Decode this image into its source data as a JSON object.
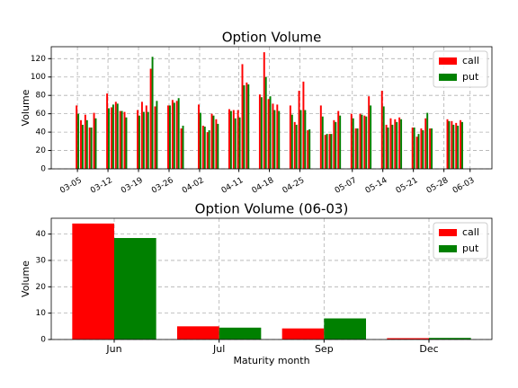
{
  "chart_data": [
    {
      "type": "bar",
      "title": "Option Volume",
      "ylabel": "Volume",
      "x": [
        "03-05",
        "03-06",
        "03-07",
        "03-08",
        "03-09",
        "03-12",
        "03-13",
        "03-14",
        "03-15",
        "03-16",
        "03-19",
        "03-20",
        "03-21",
        "03-22",
        "03-23",
        "03-26",
        "03-27",
        "03-28",
        "03-29",
        "04-02",
        "04-03",
        "04-04",
        "04-05",
        "04-06",
        "04-09",
        "04-10",
        "04-11",
        "04-12",
        "04-13",
        "04-16",
        "04-17",
        "04-18",
        "04-19",
        "04-20",
        "04-23",
        "04-24",
        "04-25",
        "04-26",
        "04-27",
        "04-30",
        "05-01",
        "05-02",
        "05-03",
        "05-04",
        "05-07",
        "05-08",
        "05-09",
        "05-10",
        "05-11",
        "05-14",
        "05-15",
        "05-16",
        "05-17",
        "05-18",
        "05-21",
        "05-22",
        "05-23",
        "05-24",
        "05-25",
        "05-29",
        "05-30",
        "05-31",
        "06-01"
      ],
      "series": [
        {
          "name": "call",
          "color": "#ff0000",
          "values": [
            69,
            53,
            59,
            45,
            61,
            82,
            67,
            73,
            63,
            62,
            64,
            73,
            69,
            109,
            68,
            69,
            75,
            74,
            44,
            70,
            47,
            40,
            60,
            54,
            65,
            64,
            64,
            114,
            94,
            81,
            127,
            76,
            71,
            70,
            69,
            51,
            85,
            95,
            42,
            69,
            37,
            38,
            53,
            63,
            60,
            44,
            60,
            58,
            79,
            85,
            48,
            55,
            54,
            56,
            45,
            35,
            44,
            55,
            44,
            54,
            52,
            50,
            53
          ]
        },
        {
          "name": "put",
          "color": "#008000",
          "values": [
            60,
            48,
            53,
            45,
            55,
            66,
            70,
            71,
            63,
            56,
            58,
            62,
            62,
            122,
            74,
            69,
            72,
            77,
            47,
            61,
            46,
            42,
            58,
            49,
            63,
            55,
            56,
            91,
            92,
            78,
            100,
            79,
            64,
            63,
            59,
            48,
            64,
            64,
            43,
            57,
            38,
            38,
            51,
            58,
            55,
            44,
            59,
            57,
            69,
            68,
            45,
            48,
            51,
            54,
            45,
            38,
            42,
            61,
            44,
            52,
            48,
            47,
            51
          ]
        }
      ],
      "xlim": [
        "02-27",
        "06-08"
      ],
      "xticks": [
        "03-05",
        "03-12",
        "03-19",
        "03-26",
        "04-02",
        "04-11",
        "04-18",
        "04-25",
        "05-07",
        "05-14",
        "05-21",
        "05-28",
        "06-03"
      ],
      "ylim": [
        0,
        133
      ],
      "yticks": [
        0,
        20,
        40,
        60,
        80,
        100,
        120
      ],
      "grid": true,
      "legend": "upper right"
    },
    {
      "type": "bar",
      "title": "Option Volume (06-03)",
      "xlabel": "Maturity month",
      "ylabel": "Volume",
      "categories": [
        "Jun",
        "Jul",
        "Sep",
        "Dec"
      ],
      "series": [
        {
          "name": "call",
          "color": "#ff0000",
          "values": [
            44,
            5,
            4.2,
            0.5
          ]
        },
        {
          "name": "put",
          "color": "#008000",
          "values": [
            38.5,
            4.5,
            8,
            0.6
          ]
        }
      ],
      "ylim": [
        0,
        46
      ],
      "yticks": [
        0,
        10,
        20,
        30,
        40
      ],
      "grid": true,
      "legend": "upper right"
    }
  ]
}
